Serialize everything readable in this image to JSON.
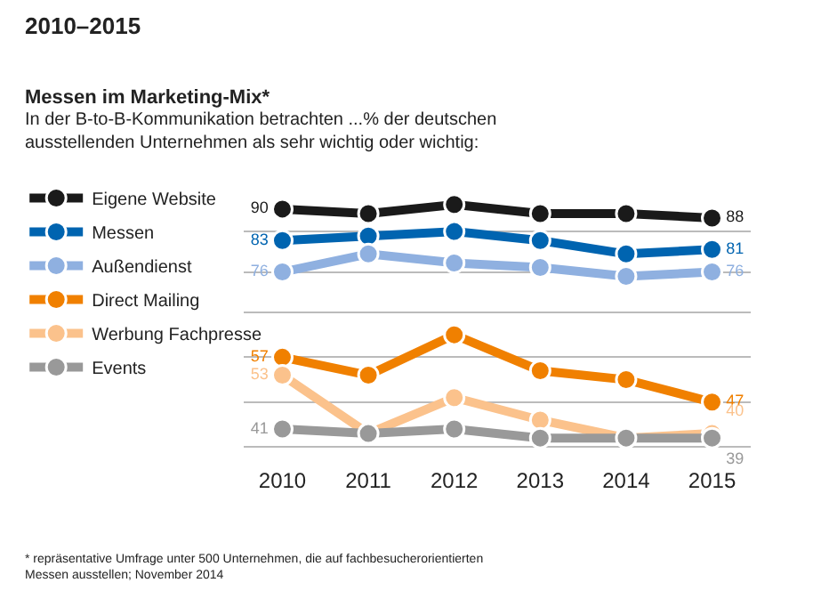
{
  "chart_data": {
    "type": "line",
    "title": "2010–2015",
    "subtitle": "Messen im Marketing-Mix*",
    "annotations": [
      "In der B-to-B-Kommunikation betrachten ...% der deutschen ausstellenden Unternehmen als sehr wichtig oder wichtig:",
      "* repräsentative Umfrage unter 500 Unternehmen, die auf fachbesucherorientierten Messen ausstellen; November 2014"
    ],
    "categories": [
      "2010",
      "2011",
      "2012",
      "2013",
      "2014",
      "2015"
    ],
    "series": [
      {
        "name": "Eigene Website",
        "color": "#1a1a1a",
        "values": [
          90,
          89,
          91,
          89,
          89,
          88
        ],
        "value_labels": [
          "90",
          null,
          null,
          null,
          null,
          "88"
        ]
      },
      {
        "name": "Messen",
        "color": "#0064b0",
        "values": [
          83,
          84,
          85,
          83,
          80,
          81
        ],
        "value_labels": [
          "83",
          null,
          null,
          null,
          null,
          "81"
        ]
      },
      {
        "name": "Außendienst",
        "color": "#8fb0e0",
        "values": [
          76,
          80,
          78,
          77,
          75,
          76
        ],
        "value_labels": [
          "76",
          null,
          null,
          null,
          null,
          "76"
        ]
      },
      {
        "name": "Direct Mailing",
        "color": "#f08000",
        "values": [
          57,
          53,
          62,
          54,
          52,
          47
        ],
        "value_labels": [
          "57",
          null,
          null,
          null,
          null,
          "47"
        ]
      },
      {
        "name": "Werbung Fachpresse",
        "color": "#fbc28c",
        "values": [
          53,
          40,
          48,
          43,
          39,
          40
        ],
        "value_labels": [
          "53",
          null,
          null,
          null,
          null,
          "40"
        ]
      },
      {
        "name": "Events",
        "color": "#999999",
        "values": [
          41,
          40,
          41,
          39,
          39,
          39
        ],
        "value_labels": [
          "41",
          null,
          null,
          null,
          null,
          "39"
        ]
      }
    ],
    "yticks": [
      {
        "value": 37,
        "label": null
      },
      {
        "value": 47,
        "label": null
      },
      {
        "value": 57,
        "label": null
      },
      {
        "value": 67,
        "label": null
      },
      {
        "value": 76,
        "label": null
      },
      {
        "value": 85,
        "label": null
      }
    ],
    "grid": "y",
    "legend": "left",
    "marker": "circle",
    "line_style": "solid",
    "tick_labels": "x"
  }
}
